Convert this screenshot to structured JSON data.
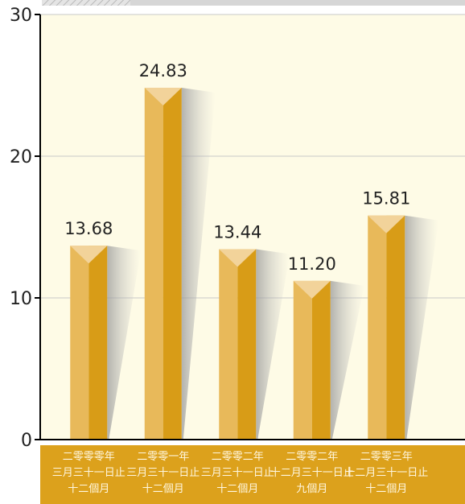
{
  "chart_data": {
    "type": "bar",
    "categories": [
      [
        "二零零零年",
        "三月三十一日止",
        "十二個月"
      ],
      [
        "二零零一年",
        "三月三十一日止",
        "十二個月"
      ],
      [
        "二零零二年",
        "三月三十一日止",
        "十二個月"
      ],
      [
        "二零零二年",
        "十二月三十一日止",
        "九個月"
      ],
      [
        "二零零三年",
        "十二月三十一日止",
        "十二個月"
      ]
    ],
    "values": [
      13.68,
      24.83,
      13.44,
      11.2,
      15.81
    ],
    "value_labels": [
      "13.68",
      "24.83",
      "13.44",
      "11.20",
      "15.81"
    ],
    "yticks": [
      "0",
      "10",
      "20",
      "30"
    ],
    "ylim": [
      0,
      30
    ],
    "grid": true,
    "colors": {
      "plot_bg": "#fefbe6",
      "bar_light": "#e8b95a",
      "bar_dark": "#d89c17",
      "bar_top": "#f2d39a",
      "label_band": "#dca11c",
      "label_text": "#fff7e0",
      "grid": "#c8c8c8",
      "top_band": "#d6d6d6"
    }
  }
}
